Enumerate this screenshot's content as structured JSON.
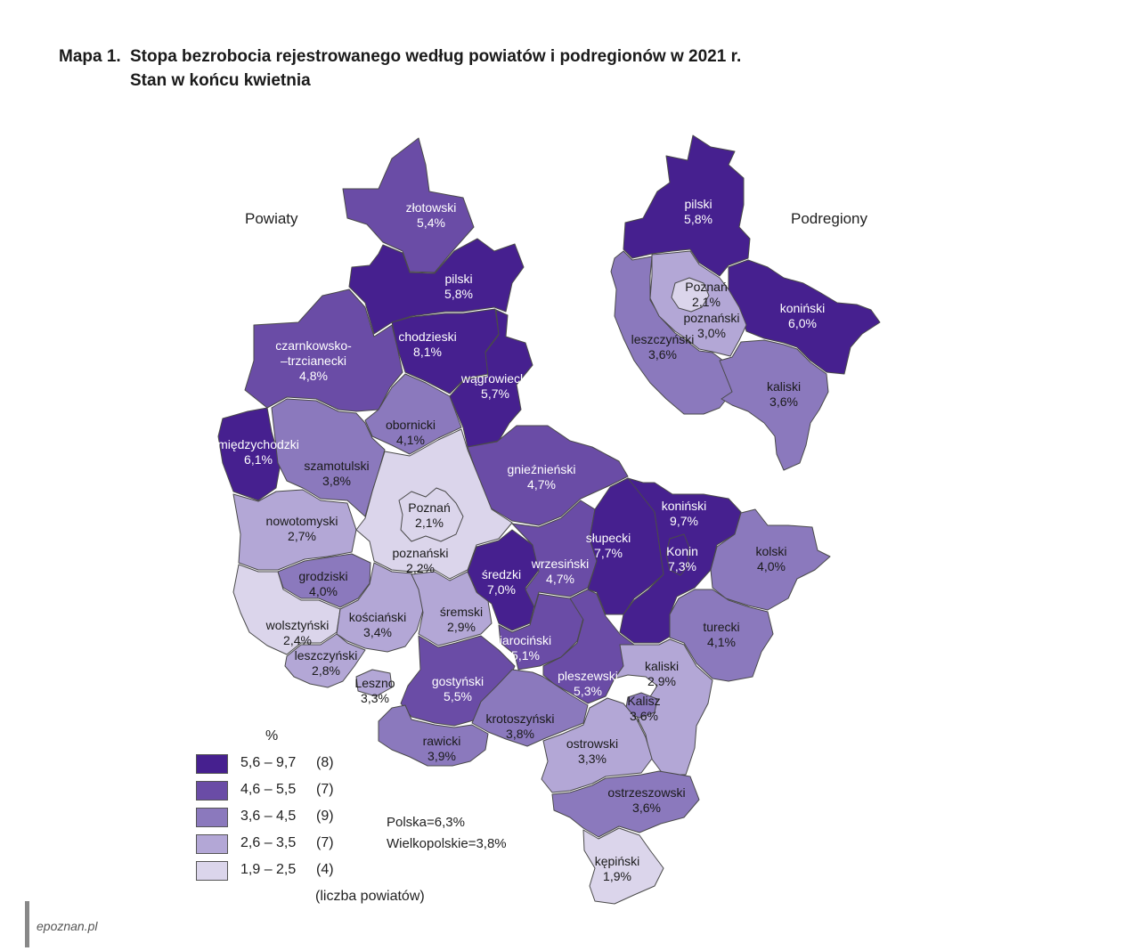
{
  "title": {
    "number": "Mapa 1.",
    "line1": "Stopa bezrobocia rejestrowanego według powiatów i podregionów w 2021 r.",
    "line2": "Stan w końcu kwietnia"
  },
  "sections": {
    "powiaty": "Powiaty",
    "podregiony": "Podregiony"
  },
  "colors": {
    "c1": "#46208f",
    "c2": "#6a4ca6",
    "c3": "#8b79bd",
    "c4": "#b3a7d6",
    "c5": "#dbd5eb",
    "border": "#4a4a4a"
  },
  "powiaty": [
    {
      "name": "złotowski",
      "value": "5,4%",
      "cls": 2
    },
    {
      "name": "pilski",
      "value": "5,8%",
      "cls": 1
    },
    {
      "name": "chodzieski",
      "value": "8,1%",
      "cls": 1
    },
    {
      "name": "czarnkowsko–trzcianecki",
      "line1": "czarnkowsko-",
      "line2": "–trzcianecki",
      "value": "4,8%",
      "cls": 2
    },
    {
      "name": "wągrowiecki",
      "value": "5,7%",
      "cls": 1
    },
    {
      "name": "obornicki",
      "value": "4,1%",
      "cls": 3
    },
    {
      "name": "międzychodzki",
      "value": "6,1%",
      "cls": 1
    },
    {
      "name": "szamotulski",
      "value": "3,8%",
      "cls": 3
    },
    {
      "name": "gnieźnieński",
      "value": "4,7%",
      "cls": 2
    },
    {
      "name": "Poznań",
      "value": "2,1%",
      "cls": 5
    },
    {
      "name": "poznański",
      "value": "2,2%",
      "cls": 5
    },
    {
      "name": "nowotomyski",
      "value": "2,7%",
      "cls": 4
    },
    {
      "name": "grodziski",
      "value": "4,0%",
      "cls": 3
    },
    {
      "name": "wolsztyński",
      "value": "2,4%",
      "cls": 5
    },
    {
      "name": "kościański",
      "value": "3,4%",
      "cls": 4
    },
    {
      "name": "śremski",
      "value": "2,9%",
      "cls": 4
    },
    {
      "name": "średzki",
      "value": "7,0%",
      "cls": 1
    },
    {
      "name": "wrzesiński",
      "value": "4,7%",
      "cls": 2
    },
    {
      "name": "słupecki",
      "value": "7,7%",
      "cls": 1
    },
    {
      "name": "koniński",
      "value": "9,7%",
      "cls": 1
    },
    {
      "name": "Konin",
      "value": "7,3%",
      "cls": 1
    },
    {
      "name": "kolski",
      "value": "4,0%",
      "cls": 3
    },
    {
      "name": "turecki",
      "value": "4,1%",
      "cls": 3
    },
    {
      "name": "leszczyński",
      "value": "2,8%",
      "cls": 4
    },
    {
      "name": "Leszno",
      "value": "3,3%",
      "cls": 4
    },
    {
      "name": "gostyński",
      "value": "5,5%",
      "cls": 2
    },
    {
      "name": "jarociński",
      "value": "5,1%",
      "cls": 2
    },
    {
      "name": "pleszewski",
      "value": "5,3%",
      "cls": 2
    },
    {
      "name": "kaliski",
      "value": "2,9%",
      "cls": 4
    },
    {
      "name": "Kalisz",
      "value": "3,6%",
      "cls": 3
    },
    {
      "name": "krotoszyński",
      "value": "3,8%",
      "cls": 3
    },
    {
      "name": "rawicki",
      "value": "3,9%",
      "cls": 3
    },
    {
      "name": "ostrowski",
      "value": "3,3%",
      "cls": 4
    },
    {
      "name": "ostrzeszowski",
      "value": "3,6%",
      "cls": 3
    },
    {
      "name": "kępiński",
      "value": "1,9%",
      "cls": 5
    }
  ],
  "podregiony": [
    {
      "name": "pilski",
      "value": "5,8%",
      "cls": 1
    },
    {
      "name": "Poznań",
      "value": "2,1%",
      "cls": 5
    },
    {
      "name": "poznański",
      "value": "3,0%",
      "cls": 4
    },
    {
      "name": "koniński",
      "value": "6,0%",
      "cls": 1
    },
    {
      "name": "leszczyński",
      "value": "3,6%",
      "cls": 3
    },
    {
      "name": "kaliski",
      "value": "3,6%",
      "cls": 3
    }
  ],
  "legend": {
    "unit": "%",
    "items": [
      {
        "range": "5,6 – 9,7",
        "count": "(8)",
        "cls": 1
      },
      {
        "range": "4,6 – 5,5",
        "count": "(7)",
        "cls": 2
      },
      {
        "range": "3,6 – 4,5",
        "count": "(9)",
        "cls": 3
      },
      {
        "range": "2,6 – 3,5",
        "count": "(7)",
        "cls": 4
      },
      {
        "range": "1,9 – 2,5",
        "count": "(4)",
        "cls": 5
      }
    ],
    "note": "(liczba powiatów)"
  },
  "totals": {
    "polska": "Polska=6,3%",
    "wielkopolskie": "Wielkopolskie=3,8%"
  },
  "watermark": "epoznan.pl"
}
